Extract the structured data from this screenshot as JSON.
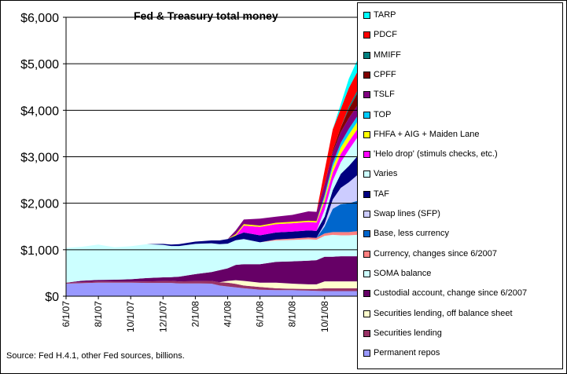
{
  "chart_data": {
    "type": "area",
    "stacked": true,
    "title": "Fed & Treasury total money",
    "source_note": "Source: Fed H.4.1, other Fed sources, billions.",
    "ylim": [
      0,
      6000
    ],
    "y_tick_values": [
      0,
      1000,
      2000,
      3000,
      4000,
      5000,
      6000
    ],
    "y_tick_labels": [
      "$0",
      "$1,000",
      "$2,000",
      "$3,000",
      "$4,000",
      "$5,000",
      "$6,000"
    ],
    "x_tick_labels": [
      "6/1/07",
      "8/1/07",
      "10/1/07",
      "12/1/07",
      "2/1/08",
      "4/1/08",
      "6/1/08",
      "8/1/08",
      "10/1/08"
    ],
    "x_tick_months": [
      0,
      2,
      4,
      6,
      8,
      10,
      12,
      14,
      16
    ],
    "x_range_months": [
      0,
      18.2
    ],
    "grid": "horizontal",
    "legend_position": "right",
    "x_months": [
      0,
      1,
      2,
      3,
      4,
      5,
      6,
      6.5,
      7,
      8,
      9,
      9.5,
      10,
      10.5,
      11,
      12,
      13,
      14,
      15,
      15.5,
      16,
      16.5,
      17,
      17.5,
      18,
      18.2
    ],
    "series": [
      {
        "name": "Permanent repos",
        "color": "#9999ff",
        "values": [
          270,
          280,
          290,
          290,
          290,
          285,
          285,
          285,
          275,
          275,
          270,
          230,
          210,
          190,
          170,
          140,
          130,
          130,
          120,
          115,
          110,
          110,
          110,
          110,
          110,
          110
        ]
      },
      {
        "name": "Securities lending",
        "color": "#993366",
        "values": [
          20,
          25,
          30,
          25,
          25,
          35,
          40,
          45,
          45,
          50,
          60,
          70,
          80,
          75,
          60,
          60,
          40,
          30,
          35,
          40,
          60,
          60,
          60,
          60,
          60,
          60
        ]
      },
      {
        "name": "Securities lending, off balance sheet",
        "color": "#ffffcc",
        "values": [
          0,
          0,
          0,
          0,
          0,
          0,
          0,
          0,
          0,
          0,
          0,
          0,
          40,
          80,
          100,
          90,
          120,
          110,
          100,
          100,
          150,
          150,
          150,
          150,
          150,
          150
        ]
      },
      {
        "name": "Custodial account, change since 6/2007",
        "color": "#660066",
        "values": [
          0,
          30,
          30,
          40,
          50,
          70,
          80,
          80,
          100,
          150,
          190,
          260,
          270,
          330,
          360,
          400,
          450,
          480,
          510,
          520,
          530,
          530,
          540,
          540,
          540,
          540
        ]
      },
      {
        "name": "SOMA balance",
        "color": "#ccffff",
        "values": [
          750,
          730,
          760,
          700,
          710,
          730,
          700,
          670,
          660,
          650,
          620,
          560,
          530,
          530,
          540,
          470,
          460,
          460,
          460,
          440,
          450,
          470,
          450,
          450,
          460,
          460
        ]
      },
      {
        "name": "Currency, changes since 6/2007",
        "color": "#ff8080",
        "values": [
          0,
          0,
          0,
          0,
          0,
          0,
          0,
          0,
          0,
          0,
          0,
          0,
          0,
          0,
          0,
          0,
          20,
          30,
          40,
          40,
          50,
          60,
          70,
          70,
          80,
          80
        ]
      },
      {
        "name": "Base, less currency",
        "color": "#0066cc",
        "values": [
          0,
          0,
          0,
          0,
          0,
          0,
          0,
          0,
          0,
          0,
          0,
          0,
          0,
          0,
          0,
          0,
          0,
          0,
          0,
          0,
          150,
          500,
          600,
          620,
          650,
          670
        ]
      },
      {
        "name": "Swap lines (SFP)",
        "color": "#ccccff",
        "values": [
          0,
          0,
          0,
          0,
          0,
          0,
          0,
          0,
          0,
          0,
          0,
          0,
          0,
          0,
          0,
          0,
          0,
          0,
          0,
          0,
          60,
          200,
          350,
          450,
          550,
          620
        ]
      },
      {
        "name": "TAF",
        "color": "#000080",
        "values": [
          0,
          0,
          0,
          0,
          0,
          0,
          20,
          30,
          40,
          50,
          60,
          80,
          100,
          100,
          140,
          150,
          150,
          150,
          150,
          150,
          150,
          200,
          300,
          350,
          400,
          420
        ]
      },
      {
        "name": "Varies",
        "color": "#ccffff",
        "values": [
          0,
          0,
          0,
          0,
          0,
          0,
          0,
          0,
          0,
          0,
          0,
          0,
          0,
          0,
          0,
          0,
          0,
          0,
          0,
          0,
          150,
          200,
          250,
          350,
          400,
          410
        ]
      },
      {
        "name": "'Helo drop' (stimuls checks, etc.)",
        "color": "#ff00ff",
        "values": [
          0,
          0,
          0,
          0,
          0,
          0,
          0,
          0,
          0,
          0,
          0,
          0,
          0,
          0,
          150,
          180,
          180,
          180,
          180,
          180,
          180,
          180,
          180,
          180,
          180,
          180
        ]
      },
      {
        "name": "FHFA + AIG + Maiden Lane",
        "color": "#ffff00",
        "values": [
          0,
          0,
          0,
          0,
          0,
          0,
          0,
          0,
          0,
          0,
          0,
          0,
          0,
          30,
          30,
          30,
          30,
          30,
          30,
          30,
          80,
          120,
          140,
          150,
          160,
          160
        ]
      },
      {
        "name": "TOP",
        "color": "#00ccff",
        "values": [
          0,
          0,
          0,
          0,
          0,
          0,
          0,
          0,
          0,
          0,
          0,
          0,
          0,
          0,
          0,
          0,
          0,
          0,
          0,
          0,
          60,
          80,
          100,
          120,
          120,
          120
        ]
      },
      {
        "name": "TSLF",
        "color": "#800080",
        "values": [
          0,
          0,
          0,
          0,
          0,
          0,
          0,
          0,
          0,
          0,
          0,
          0,
          0,
          80,
          100,
          150,
          130,
          150,
          200,
          200,
          230,
          230,
          230,
          230,
          230,
          230
        ]
      },
      {
        "name": "CPFF",
        "color": "#800000",
        "values": [
          0,
          0,
          0,
          0,
          0,
          0,
          0,
          0,
          0,
          0,
          0,
          0,
          0,
          0,
          0,
          0,
          0,
          0,
          0,
          0,
          0,
          50,
          100,
          200,
          260,
          270
        ]
      },
      {
        "name": "MMIFF",
        "color": "#008080",
        "values": [
          0,
          0,
          0,
          0,
          0,
          0,
          0,
          0,
          0,
          0,
          0,
          0,
          0,
          0,
          0,
          0,
          0,
          0,
          0,
          0,
          0,
          0,
          0,
          50,
          60,
          60
        ]
      },
      {
        "name": "PDCF",
        "color": "#ff0000",
        "values": [
          0,
          0,
          0,
          0,
          0,
          0,
          0,
          0,
          0,
          0,
          0,
          0,
          0,
          0,
          0,
          0,
          0,
          0,
          0,
          0,
          300,
          450,
          400,
          400,
          400,
          400
        ]
      },
      {
        "name": "TARP",
        "color": "#00ffff",
        "values": [
          0,
          0,
          0,
          0,
          0,
          0,
          0,
          0,
          0,
          0,
          0,
          0,
          0,
          0,
          0,
          0,
          0,
          0,
          0,
          0,
          0,
          0,
          100,
          200,
          250,
          250
        ]
      }
    ]
  }
}
